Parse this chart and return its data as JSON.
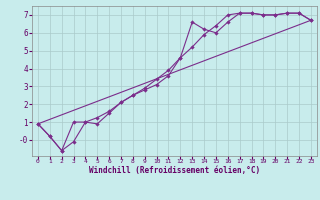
{
  "xlabel": "Windchill (Refroidissement éolien,°C)",
  "bg_color": "#c8ecec",
  "line_color": "#7b2d8b",
  "grid_color": "#aacaca",
  "xlim": [
    -0.5,
    23.5
  ],
  "ylim": [
    -0.9,
    7.5
  ],
  "xticks": [
    0,
    1,
    2,
    3,
    4,
    5,
    6,
    7,
    8,
    9,
    10,
    11,
    12,
    13,
    14,
    15,
    16,
    17,
    18,
    19,
    20,
    21,
    22,
    23
  ],
  "yticks": [
    0,
    1,
    2,
    3,
    4,
    5,
    6,
    7
  ],
  "ytick_labels": [
    "-0",
    "1",
    "2",
    "3",
    "4",
    "5",
    "6",
    "7"
  ],
  "series1_x": [
    0,
    1,
    2,
    3,
    4,
    5,
    6,
    7,
    8,
    9,
    10,
    11,
    12,
    13,
    14,
    15,
    16,
    17,
    18,
    19,
    20,
    21,
    22,
    23
  ],
  "series1_y": [
    0.9,
    0.2,
    -0.6,
    -0.1,
    1.0,
    0.9,
    1.5,
    2.1,
    2.5,
    2.8,
    3.1,
    3.6,
    4.6,
    6.6,
    6.2,
    6.0,
    6.6,
    7.1,
    7.1,
    7.0,
    7.0,
    7.1,
    7.1,
    6.7
  ],
  "series2_x": [
    0,
    1,
    2,
    3,
    4,
    5,
    6,
    7,
    8,
    9,
    10,
    11,
    12,
    13,
    14,
    15,
    16,
    17,
    18,
    19,
    20,
    21,
    22,
    23
  ],
  "series2_y": [
    0.9,
    0.2,
    -0.6,
    1.0,
    1.0,
    1.25,
    1.6,
    2.1,
    2.5,
    2.9,
    3.4,
    3.9,
    4.6,
    5.2,
    5.9,
    6.4,
    7.0,
    7.1,
    7.1,
    7.0,
    7.0,
    7.1,
    7.1,
    6.7
  ],
  "series3_x": [
    0,
    23
  ],
  "series3_y": [
    0.9,
    6.7
  ]
}
